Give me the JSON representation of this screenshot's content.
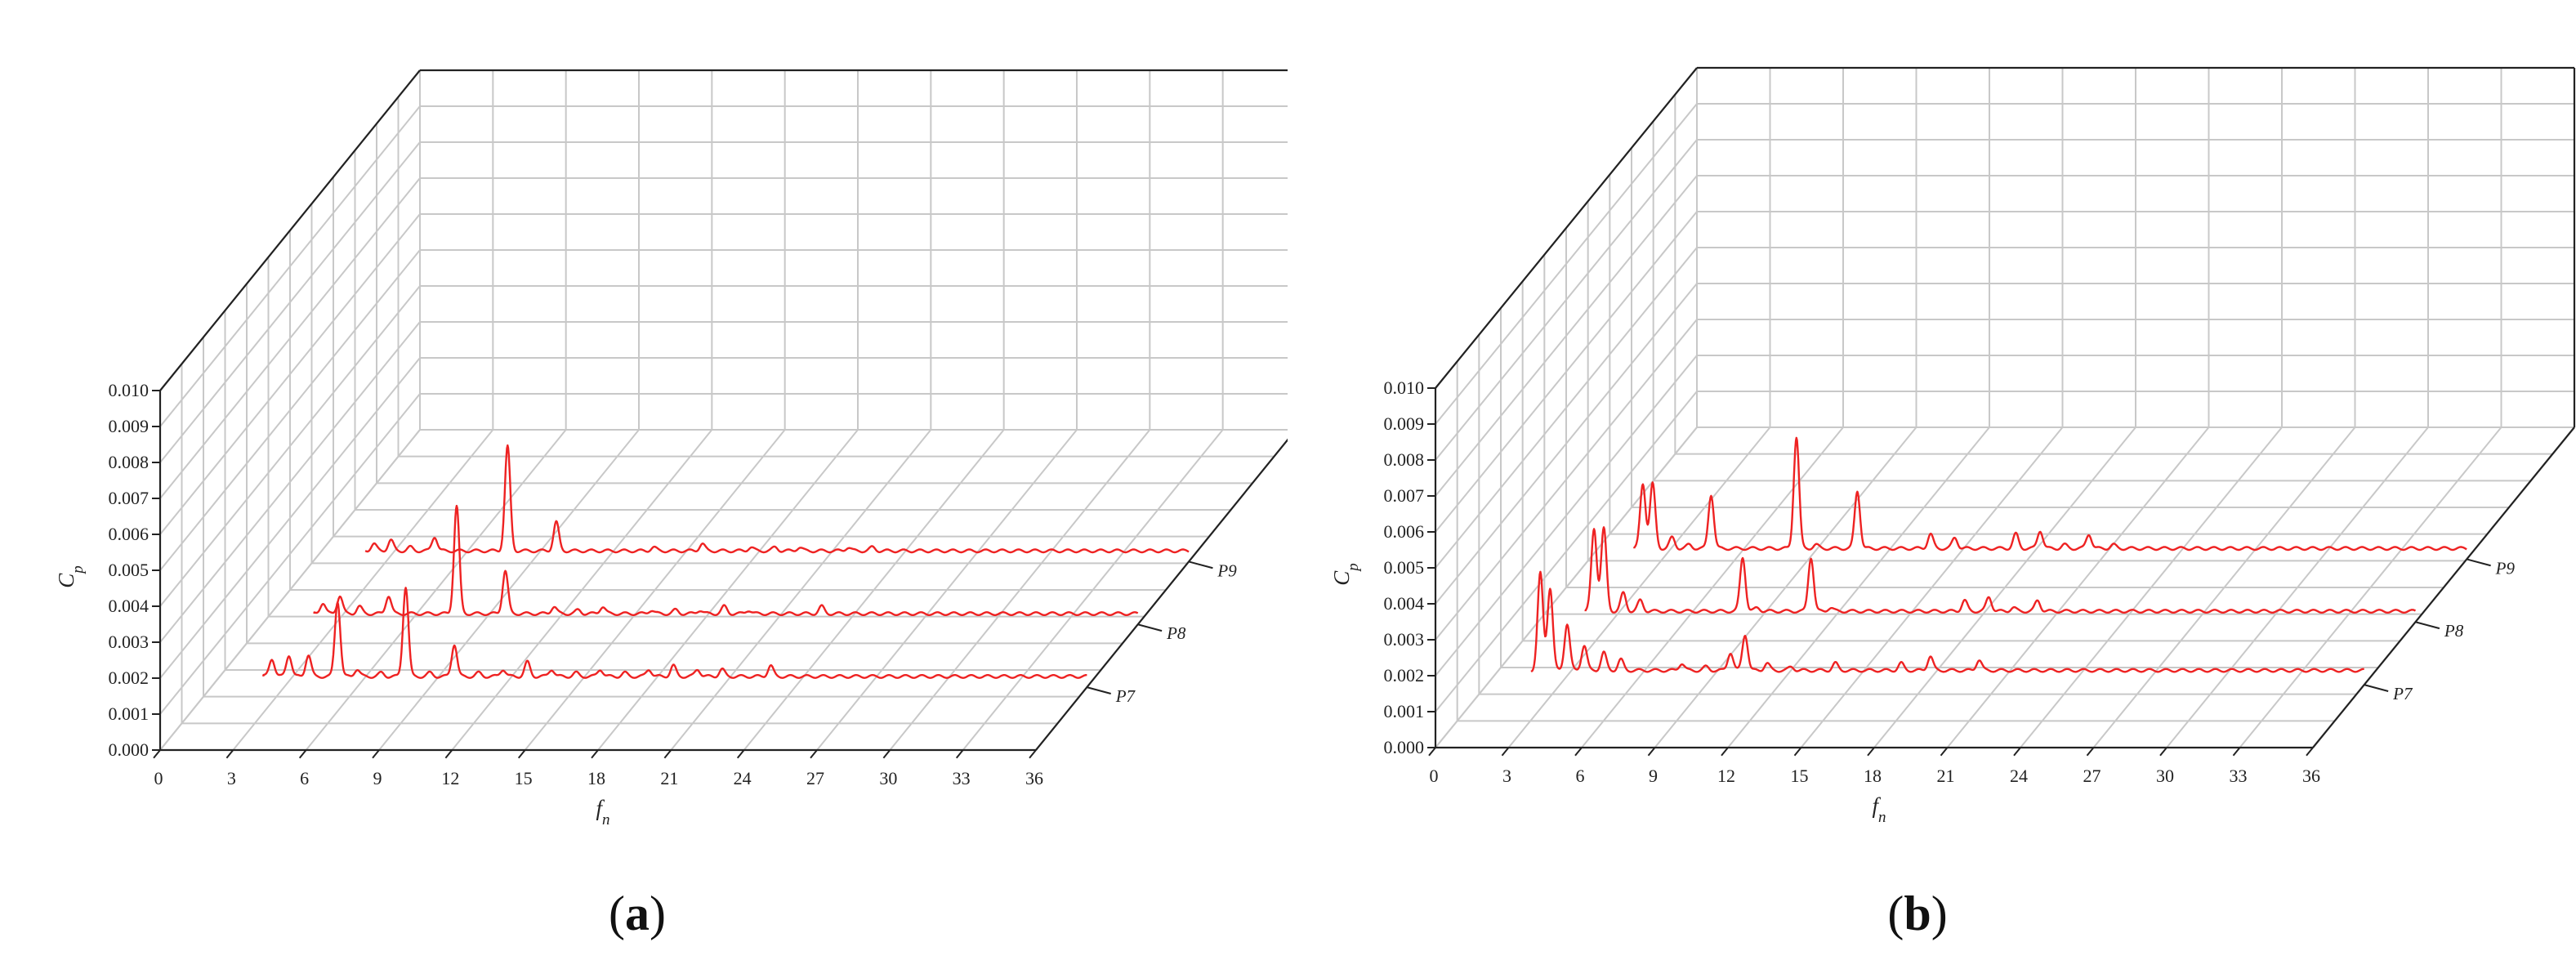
{
  "colors": {
    "series": "#ee2222",
    "grid": "#c8c8c8",
    "axis": "#222222"
  },
  "chart_data": [
    {
      "panel_label": "(a)",
      "type": "3d-waterfall line",
      "xlabel": "f",
      "xlabel_sub": "n",
      "ylabel": "C",
      "ylabel_sub": "p",
      "xlim": [
        0,
        36
      ],
      "ylim": [
        0,
        0.01
      ],
      "x_ticks": [
        "0",
        "3",
        "6",
        "9",
        "12",
        "15",
        "18",
        "21",
        "24",
        "27",
        "30",
        "33",
        "36"
      ],
      "y_ticks": [
        "0.000",
        "0.001",
        "0.002",
        "0.003",
        "0.004",
        "0.005",
        "0.006",
        "0.007",
        "0.008",
        "0.009",
        "0.010"
      ],
      "series": [
        {
          "name": "P7",
          "baseline": 0.0003,
          "tail_end": 36,
          "peaks": [
            [
              2.5,
              0.0008
            ],
            [
              3.2,
              0.0009
            ],
            [
              4,
              0.0009
            ],
            [
              5.2,
              0.0024
            ],
            [
              6,
              0.0005
            ],
            [
              7,
              0.0004
            ],
            [
              8,
              0.0028
            ],
            [
              9,
              0.0004
            ],
            [
              10,
              0.0012
            ],
            [
              11,
              0.0004
            ],
            [
              12,
              0.0005
            ],
            [
              13,
              0.0007
            ],
            [
              14,
              0.0005
            ],
            [
              15,
              0.0004
            ],
            [
              16,
              0.0005
            ],
            [
              17,
              0.0004
            ],
            [
              18,
              0.0005
            ],
            [
              19,
              0.0006
            ],
            [
              20,
              0.0005
            ],
            [
              21,
              0.0005
            ],
            [
              22,
              0.0003
            ],
            [
              23,
              0.0006
            ]
          ]
        },
        {
          "name": "P8",
          "baseline": 0.0003,
          "tail_end": 36,
          "peaks": [
            [
              2.5,
              0.0006
            ],
            [
              3.2,
              0.0008
            ],
            [
              4,
              0.0005
            ],
            [
              5.2,
              0.0008
            ],
            [
              6,
              0.0002
            ],
            [
              7,
              0.0003
            ],
            [
              8,
              0.0033
            ],
            [
              9,
              0.0003
            ],
            [
              10,
              0.0015
            ],
            [
              11,
              0.0003
            ],
            [
              12,
              0.0005
            ],
            [
              13,
              0.0004
            ],
            [
              14,
              0.0005
            ],
            [
              15,
              0.0003
            ],
            [
              16,
              0.0004
            ],
            [
              17,
              0.0004
            ],
            [
              18,
              0.0004
            ],
            [
              19,
              0.0005
            ],
            [
              20,
              0.0004
            ],
            [
              21,
              0.0003
            ],
            [
              22,
              0.0003
            ],
            [
              23,
              0.0005
            ]
          ]
        },
        {
          "name": "P9",
          "baseline": 0.0003,
          "tail_end": 36,
          "peaks": [
            [
              2.5,
              0.0005
            ],
            [
              3.2,
              0.0006
            ],
            [
              4,
              0.0004
            ],
            [
              5,
              0.0007
            ],
            [
              6,
              0.0003
            ],
            [
              7,
              0.0003
            ],
            [
              8,
              0.0032
            ],
            [
              9,
              0.0003
            ],
            [
              10,
              0.0011
            ],
            [
              11,
              0.0003
            ],
            [
              12,
              0.0002
            ],
            [
              13,
              0.0003
            ],
            [
              14,
              0.0004
            ],
            [
              15,
              0.0003
            ],
            [
              16,
              0.0005
            ],
            [
              17,
              0.0003
            ],
            [
              18,
              0.0004
            ],
            [
              19,
              0.0004
            ],
            [
              20,
              0.0004
            ],
            [
              21,
              0.0003
            ],
            [
              22,
              0.0004
            ],
            [
              23,
              0.0004
            ]
          ]
        }
      ]
    },
    {
      "panel_label": "(b)",
      "type": "3d-waterfall line",
      "xlabel": "f",
      "xlabel_sub": "n",
      "ylabel": "C",
      "ylabel_sub": "p",
      "xlim": [
        0,
        36
      ],
      "ylim": [
        0,
        0.01
      ],
      "x_ticks": [
        "0",
        "3",
        "6",
        "9",
        "12",
        "15",
        "18",
        "21",
        "24",
        "27",
        "30",
        "33",
        "36"
      ],
      "y_ticks": [
        "0.000",
        "0.001",
        "0.002",
        "0.003",
        "0.004",
        "0.005",
        "0.006",
        "0.007",
        "0.008",
        "0.009",
        "0.010"
      ],
      "series": [
        {
          "name": "P7",
          "baseline": 0.0004,
          "tail_end": 36,
          "peaks": [
            [
              2.2,
              0.0031
            ],
            [
              2.6,
              0.0027
            ],
            [
              3.3,
              0.0017
            ],
            [
              4,
              0.0011
            ],
            [
              4.8,
              0.0009
            ],
            [
              5.5,
              0.0007
            ],
            [
              6.5,
              0.0004
            ],
            [
              8,
              0.0006
            ],
            [
              9,
              0.0005
            ],
            [
              10,
              0.0009
            ],
            [
              10.6,
              0.0014
            ],
            [
              11.5,
              0.0006
            ],
            [
              12.5,
              0.0005
            ],
            [
              13.5,
              0.0004
            ],
            [
              14.3,
              0.0006
            ],
            [
              17,
              0.0006
            ],
            [
              18.2,
              0.0008
            ],
            [
              19.2,
              0.0004
            ],
            [
              20.2,
              0.0007
            ],
            [
              21,
              0.0004
            ]
          ]
        },
        {
          "name": "P8",
          "baseline": 0.0003,
          "tail_end": 36,
          "peaks": [
            [
              2.3,
              0.0026
            ],
            [
              2.7,
              0.0026
            ],
            [
              3.5,
              0.0008
            ],
            [
              4.2,
              0.0006
            ],
            [
              5,
              0.0003
            ],
            [
              6,
              0.0003
            ],
            [
              7,
              0.0003
            ],
            [
              8.4,
              0.0018
            ],
            [
              9,
              0.0004
            ],
            [
              10,
              0.0003
            ],
            [
              11.2,
              0.0018
            ],
            [
              12,
              0.0004
            ],
            [
              13,
              0.0003
            ],
            [
              14,
              0.0003
            ],
            [
              15,
              0.0003
            ],
            [
              17.5,
              0.0006
            ],
            [
              18.5,
              0.0007
            ],
            [
              19.5,
              0.0004
            ],
            [
              20.5,
              0.0006
            ],
            [
              21.5,
              0.0003
            ]
          ]
        },
        {
          "name": "P9",
          "baseline": 0.0003,
          "tail_end": 36,
          "peaks": [
            [
              2.2,
              0.0021
            ],
            [
              2.6,
              0.0021
            ],
            [
              3.4,
              0.0006
            ],
            [
              4.1,
              0.0004
            ],
            [
              5,
              0.0018
            ],
            [
              6,
              0.0003
            ],
            [
              7,
              0.0003
            ],
            [
              8.5,
              0.0034
            ],
            [
              9.3,
              0.0004
            ],
            [
              11,
              0.0019
            ],
            [
              12,
              0.0003
            ],
            [
              13,
              0.0003
            ],
            [
              14,
              0.0007
            ],
            [
              15,
              0.0006
            ],
            [
              17.5,
              0.0007
            ],
            [
              18.5,
              0.0008
            ],
            [
              19.5,
              0.0004
            ],
            [
              20.5,
              0.0007
            ],
            [
              21.5,
              0.0004
            ]
          ]
        }
      ]
    }
  ]
}
